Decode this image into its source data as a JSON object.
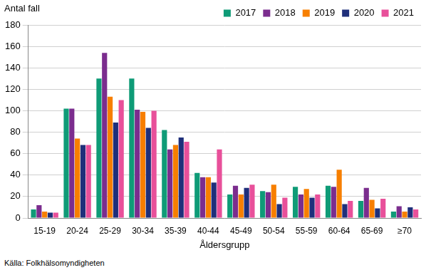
{
  "chart_data": {
    "type": "bar",
    "y_label": "Antal fall",
    "x_label": "Åldersgrupp",
    "annotations": [
      "Källa: Folkhälsomyndigheten"
    ],
    "categories": [
      "15-19",
      "20-24",
      "25-29",
      "30-34",
      "35-39",
      "40-44",
      "45-49",
      "50-54",
      "55-59",
      "60-64",
      "65-69",
      "≥70"
    ],
    "series": [
      {
        "name": "2017",
        "color": "#0f9b77",
        "values": [
          8,
          102,
          130,
          130,
          82,
          42,
          22,
          25,
          29,
          30,
          16,
          6
        ]
      },
      {
        "name": "2018",
        "color": "#7b2d8e",
        "values": [
          12,
          102,
          154,
          101,
          64,
          38,
          30,
          24,
          22,
          29,
          28,
          11
        ]
      },
      {
        "name": "2019",
        "color": "#f77f00",
        "values": [
          6,
          74,
          113,
          99,
          68,
          38,
          22,
          31,
          27,
          45,
          17,
          6
        ]
      },
      {
        "name": "2020",
        "color": "#1f2f7a",
        "values": [
          5,
          68,
          89,
          84,
          75,
          33,
          28,
          13,
          19,
          13,
          9,
          10
        ]
      },
      {
        "name": "2021",
        "color": "#e8509a",
        "values": [
          5,
          68,
          110,
          100,
          71,
          64,
          31,
          19,
          22,
          16,
          18,
          8
        ]
      }
    ],
    "ylim": [
      0,
      180
    ],
    "yticks": [
      0,
      20,
      40,
      60,
      80,
      100,
      120,
      140,
      160,
      180
    ],
    "grid": true,
    "legend": "top"
  }
}
